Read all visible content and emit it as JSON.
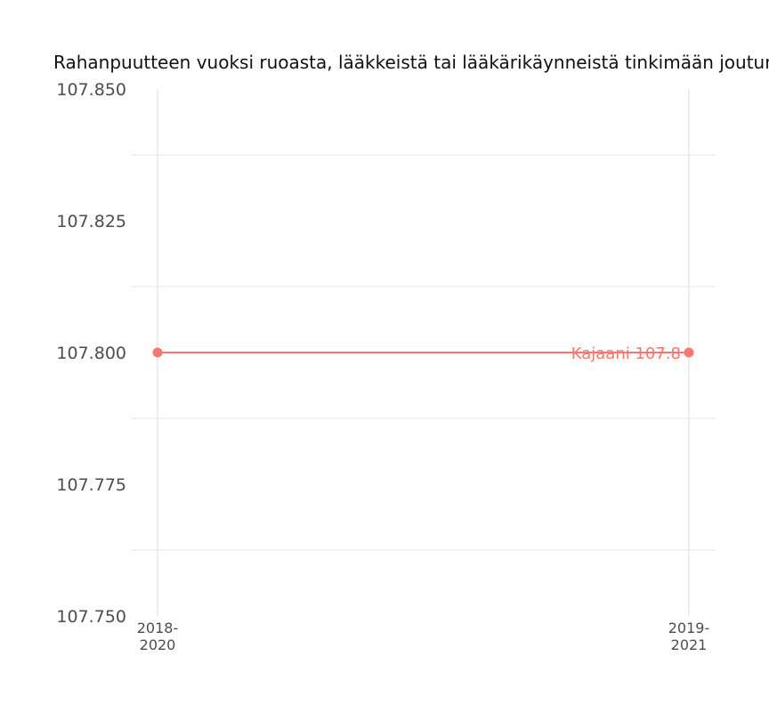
{
  "chart_data": {
    "type": "line",
    "title": "Rahanpuutteen vuoksi ruoasta, lääkkeistä tai lääkärikäynneistä tinkimään joutuneet",
    "x": [
      "2018-2020",
      "2019-2021"
    ],
    "x_tick_lines": [
      [
        "2018-",
        "2020"
      ],
      [
        "2019-",
        "2021"
      ]
    ],
    "series": [
      {
        "name": "Kajaani",
        "values": [
          107.8,
          107.8
        ],
        "color": "#f8766d",
        "end_label": "Kajaani 107.8"
      }
    ],
    "ylim": [
      107.75,
      107.85
    ],
    "yticks": [
      107.75,
      107.775,
      107.8,
      107.825,
      107.85
    ],
    "ytick_labels": [
      "107.750",
      "107.775",
      "107.800",
      "107.825",
      "107.850"
    ],
    "grid": true,
    "legend": "none"
  }
}
